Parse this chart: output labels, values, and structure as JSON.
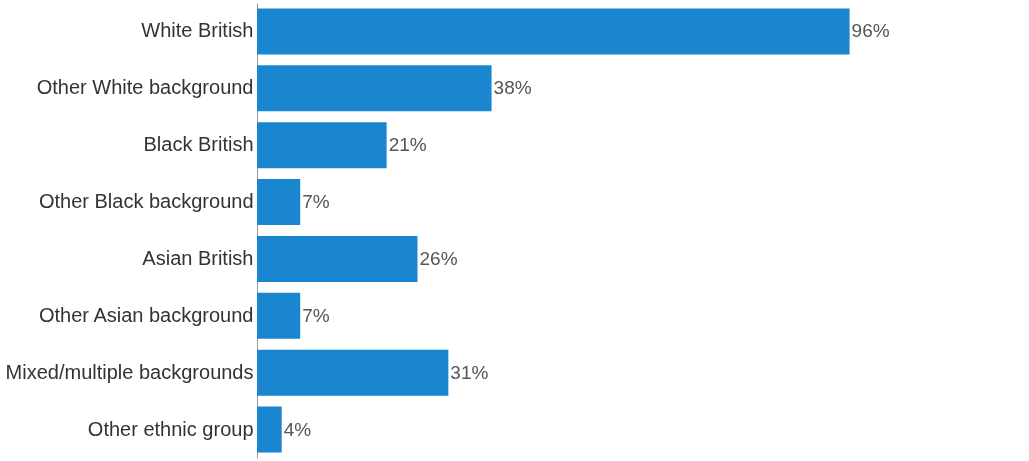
{
  "chart_data": {
    "type": "bar",
    "orientation": "horizontal",
    "categories": [
      "White British",
      "Other White background",
      "Black British",
      "Other Black background",
      "Asian British",
      "Other Asian background",
      "Mixed/multiple backgrounds",
      "Other ethnic group"
    ],
    "values": [
      96,
      38,
      21,
      7,
      26,
      7,
      31,
      4
    ],
    "value_labels": [
      "96%",
      "38%",
      "21%",
      "7%",
      "26%",
      "7%",
      "31%",
      "4%"
    ],
    "color": "#1a86d0"
  }
}
